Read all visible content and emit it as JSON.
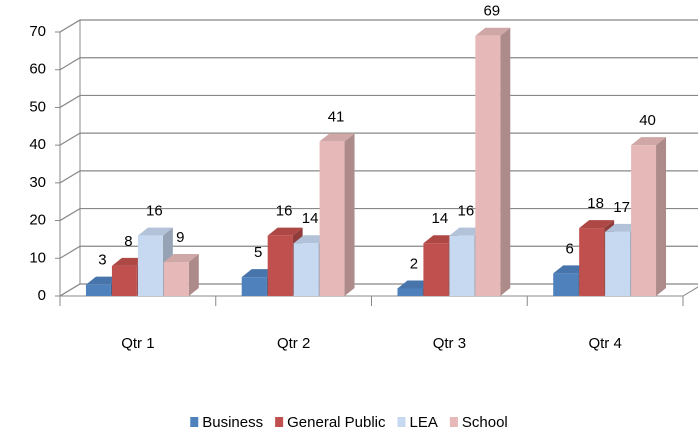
{
  "chart_data": {
    "type": "bar3d",
    "categories": [
      "Qtr 1",
      "Qtr 2",
      "Qtr 3",
      "Qtr 4"
    ],
    "series": [
      {
        "name": "Business",
        "color": "#4f81bd",
        "values": [
          3,
          5,
          2,
          6
        ]
      },
      {
        "name": "General Public",
        "color": "#c0504d",
        "values": [
          8,
          16,
          14,
          18
        ]
      },
      {
        "name": "LEA",
        "color": "#c6d9f1",
        "values": [
          16,
          14,
          16,
          17
        ]
      },
      {
        "name": "School",
        "color": "#e6b9b8",
        "values": [
          9,
          41,
          69,
          40
        ]
      }
    ],
    "ylim": [
      0,
      70
    ],
    "yticks": [
      0,
      10,
      20,
      30,
      40,
      50,
      60,
      70
    ],
    "grid": true,
    "data_labels": true,
    "legend": "bottom"
  }
}
